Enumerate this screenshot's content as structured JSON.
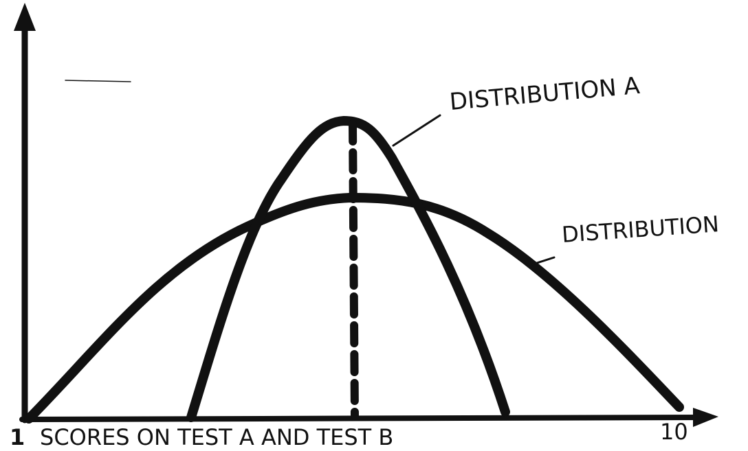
{
  "axis": {
    "start_label": "1",
    "end_label": "10",
    "title": "SCORES ON TEST A AND TEST B"
  },
  "curves": [
    {
      "label": "DISTRIBUTION A"
    },
    {
      "label": "DISTRIBUTION"
    }
  ]
}
